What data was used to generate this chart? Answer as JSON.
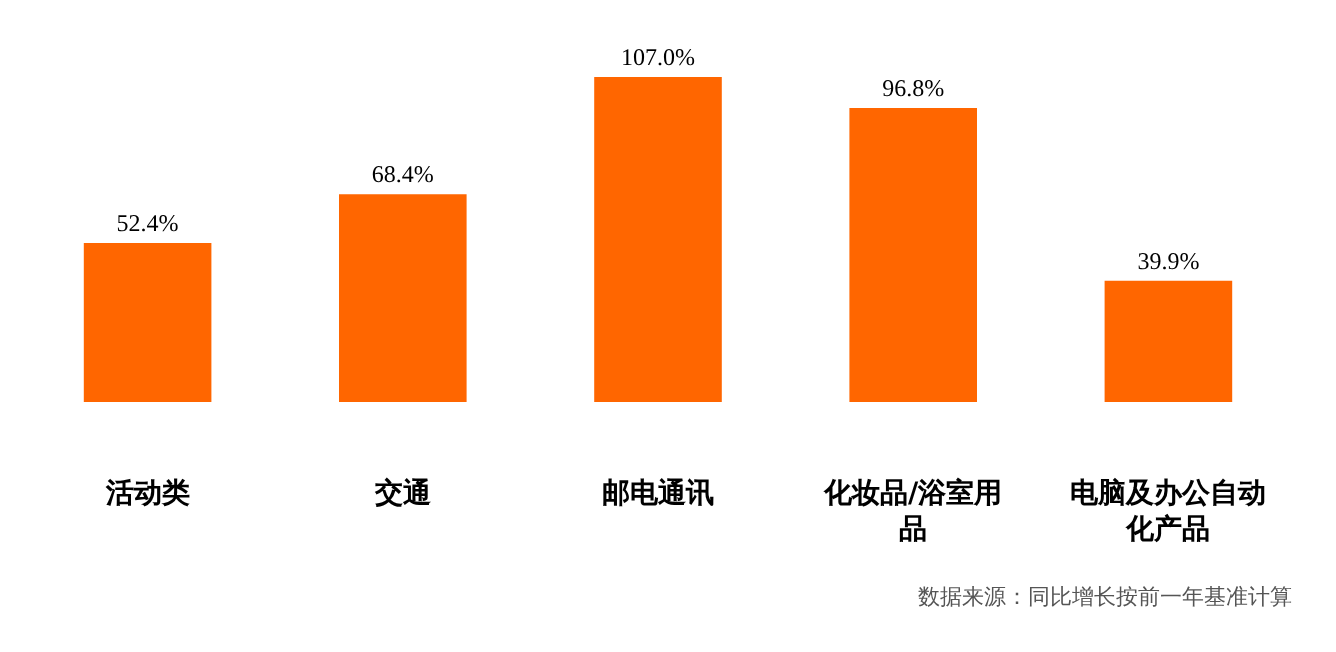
{
  "chart_data": {
    "type": "bar",
    "categories": [
      "活动类",
      "交通",
      "邮电通讯",
      "化妆品/浴室用品",
      "电脑及办公自动化产品"
    ],
    "values": [
      52.4,
      68.4,
      107.0,
      96.8,
      39.9
    ],
    "value_labels": [
      "52.4%",
      "68.4%",
      "107.0%",
      "96.8%",
      "39.9%"
    ],
    "color": "#ff6600",
    "annotations": [
      "数据来源：同比增长按前一年基准计算"
    ]
  }
}
